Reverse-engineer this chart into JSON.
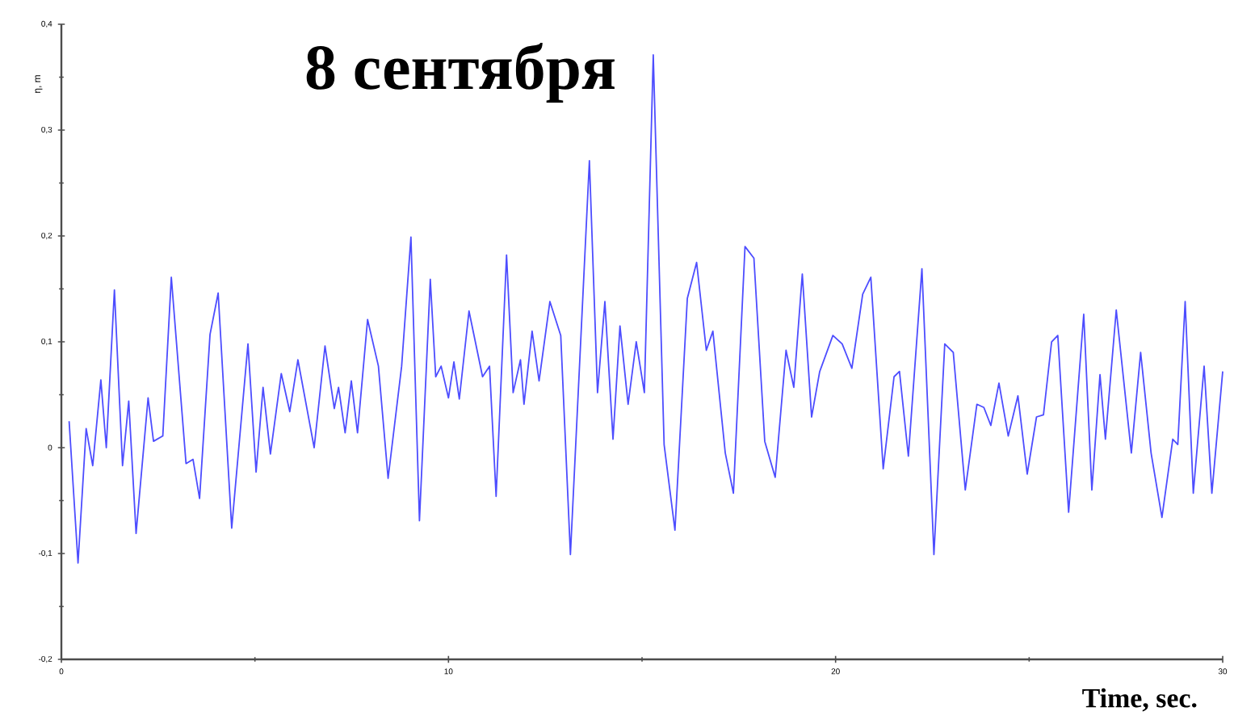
{
  "chart_data": {
    "type": "line",
    "title": "8 сентября",
    "xlabel": "Time, sec.",
    "ylabel": "η, m",
    "xlim": [
      0,
      30
    ],
    "ylim": [
      -0.2,
      0.4
    ],
    "xticks": [
      0,
      10,
      20,
      30
    ],
    "yticks": [
      {
        "value": -0.2,
        "label": "-0,2"
      },
      {
        "value": -0.1,
        "label": "-0,1"
      },
      {
        "value": 0,
        "label": "0"
      },
      {
        "value": 0.1,
        "label": "0,1"
      },
      {
        "value": 0.2,
        "label": "0,2"
      },
      {
        "value": 0.3,
        "label": "0,3"
      },
      {
        "value": 0.4,
        "label": "0,4"
      }
    ],
    "marker": "none",
    "line_style": "solid",
    "series": [
      {
        "color": "#4d4dff",
        "x": [
          0.2,
          0.43,
          0.64,
          0.81,
          1.02,
          1.16,
          1.37,
          1.58,
          1.74,
          1.93,
          2.24,
          2.38,
          2.62,
          2.84,
          3.22,
          3.4,
          3.57,
          3.84,
          4.05,
          4.4,
          4.82,
          5.03,
          5.21,
          5.4,
          5.68,
          5.9,
          6.11,
          6.53,
          6.81,
          7.05,
          7.16,
          7.33,
          7.49,
          7.65,
          7.91,
          8.19,
          8.44,
          8.79,
          9.03,
          9.25,
          9.53,
          9.67,
          9.81,
          10.0,
          10.14,
          10.28,
          10.53,
          10.88,
          11.06,
          11.23,
          11.5,
          11.67,
          11.86,
          11.95,
          12.16,
          12.34,
          12.62,
          12.9,
          13.15,
          13.64,
          13.85,
          14.04,
          14.25,
          14.43,
          14.64,
          14.85,
          15.06,
          15.29,
          15.57,
          15.85,
          16.17,
          16.41,
          16.66,
          16.83,
          17.15,
          17.36,
          17.66,
          17.89,
          18.17,
          18.44,
          18.72,
          18.92,
          19.14,
          19.38,
          19.59,
          19.93,
          20.17,
          20.42,
          20.7,
          20.91,
          21.23,
          21.51,
          21.65,
          21.88,
          22.23,
          22.54,
          22.82,
          23.04,
          23.35,
          23.65,
          23.83,
          24.01,
          24.22,
          24.46,
          24.71,
          24.95,
          25.19,
          25.37,
          25.58,
          25.74,
          26.02,
          26.41,
          26.62,
          26.83,
          26.97,
          27.25,
          27.64,
          27.88,
          28.15,
          28.43,
          28.71,
          28.84,
          29.03,
          29.24,
          29.52,
          29.72,
          30.0
        ],
        "values": [
          0.025,
          -0.109,
          0.018,
          -0.017,
          0.064,
          0.0,
          0.149,
          -0.017,
          0.044,
          -0.081,
          0.047,
          0.006,
          0.011,
          0.161,
          -0.015,
          -0.011,
          -0.048,
          0.107,
          0.146,
          -0.076,
          0.098,
          -0.023,
          0.057,
          -0.006,
          0.07,
          0.034,
          0.083,
          0.0,
          0.096,
          0.037,
          0.057,
          0.014,
          0.063,
          0.014,
          0.121,
          0.077,
          -0.029,
          0.077,
          0.199,
          -0.069,
          0.159,
          0.067,
          0.077,
          0.047,
          0.081,
          0.046,
          0.129,
          0.067,
          0.077,
          -0.046,
          0.182,
          0.052,
          0.083,
          0.041,
          0.11,
          0.063,
          0.138,
          0.106,
          -0.101,
          0.271,
          0.052,
          0.138,
          0.008,
          0.115,
          0.041,
          0.1,
          0.052,
          0.371,
          0.003,
          -0.078,
          0.141,
          0.175,
          0.092,
          0.11,
          -0.005,
          -0.043,
          0.19,
          0.179,
          0.006,
          -0.028,
          0.092,
          0.057,
          0.164,
          0.029,
          0.072,
          0.106,
          0.098,
          0.075,
          0.145,
          0.161,
          -0.02,
          0.067,
          0.072,
          -0.008,
          0.169,
          -0.101,
          0.098,
          0.09,
          -0.04,
          0.041,
          0.038,
          0.021,
          0.061,
          0.011,
          0.049,
          -0.025,
          0.029,
          0.031,
          0.1,
          0.106,
          -0.061,
          0.126,
          -0.04,
          0.069,
          0.008,
          0.13,
          -0.005,
          0.09,
          -0.005,
          -0.066,
          0.008,
          0.003,
          0.138,
          -0.043,
          0.077,
          -0.043,
          0.072
        ]
      }
    ]
  }
}
